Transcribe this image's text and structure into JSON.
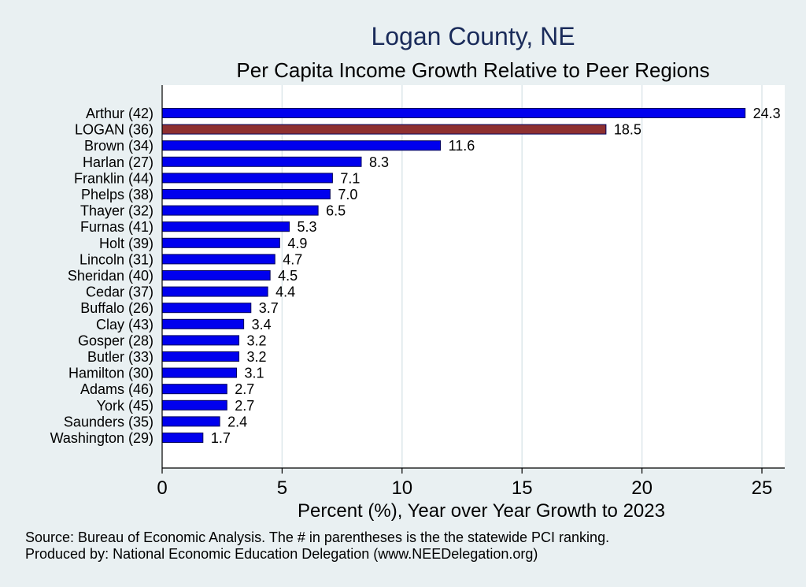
{
  "chart_data": {
    "type": "bar",
    "orientation": "horizontal",
    "title": "Logan County, NE",
    "subtitle": "Per Capita Income Growth Relative to Peer Regions",
    "xlabel": "Percent (%), Year over Year Growth to 2023",
    "ylabel": "",
    "xlim": [
      0,
      26
    ],
    "xticks": [
      "0",
      "5",
      "10",
      "15",
      "20",
      "25"
    ],
    "xtick_values": [
      0,
      5,
      10,
      15,
      20,
      25
    ],
    "grid": true,
    "categories": [
      "Arthur (42)",
      "LOGAN (36)",
      "Brown (34)",
      "Harlan (27)",
      "Franklin (44)",
      "Phelps (38)",
      "Thayer (32)",
      "Furnas (41)",
      "Holt (39)",
      "Lincoln (31)",
      "Sheridan (40)",
      "Cedar (37)",
      "Buffalo (26)",
      "Clay (43)",
      "Gosper (28)",
      "Butler (33)",
      "Hamilton (30)",
      "Adams (46)",
      "York (45)",
      "Saunders (35)",
      "Washington (29)"
    ],
    "values": [
      24.3,
      18.5,
      11.6,
      8.3,
      7.1,
      7.0,
      6.5,
      5.3,
      4.9,
      4.7,
      4.5,
      4.4,
      3.7,
      3.4,
      3.2,
      3.2,
      3.1,
      2.7,
      2.7,
      2.4,
      1.7
    ],
    "value_labels": [
      "24.3",
      "18.5",
      "11.6",
      "8.3",
      "7.1",
      "7.0",
      "6.5",
      "5.3",
      "4.9",
      "4.7",
      "4.5",
      "4.4",
      "3.7",
      "3.4",
      "3.2",
      "3.2",
      "3.1",
      "2.7",
      "2.7",
      "2.4",
      "1.7"
    ],
    "highlight_index": 1,
    "colors": {
      "bar": "#0000ee",
      "highlight": "#8e3030",
      "bar_outline": "#00005a",
      "grid": "#dde7ea",
      "plot_bg": "#ffffff",
      "title": "#1a2b5a"
    }
  },
  "footer": {
    "source": "Source: Bureau of Economic Analysis. The # in parentheses is the the statewide PCI ranking.",
    "produced_by": "Produced by: National Economic Education Delegation (www.NEEDelegation.org)"
  }
}
